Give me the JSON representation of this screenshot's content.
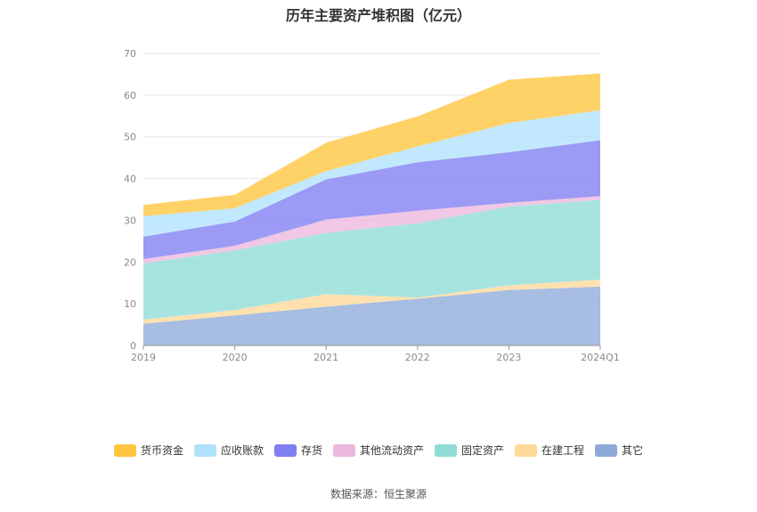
{
  "chart_data": {
    "type": "area",
    "stacked": true,
    "title": "历年主要资产堆积图（亿元）",
    "categories": [
      "2019",
      "2020",
      "2021",
      "2022",
      "2023",
      "2024Q1"
    ],
    "ylim": [
      0,
      70
    ],
    "yticks": [
      0,
      10,
      20,
      30,
      40,
      50,
      60,
      70
    ],
    "grid": true,
    "legend_position": "bottom",
    "series": [
      {
        "name": "其它",
        "color": "#8eaad8",
        "values": [
          5.2,
          7.2,
          9.3,
          11.2,
          13.3,
          14.1
        ]
      },
      {
        "name": "在建工程",
        "color": "#ffd99a",
        "values": [
          1.0,
          1.3,
          3.0,
          0.3,
          1.1,
          1.7
        ]
      },
      {
        "name": "固定资产",
        "color": "#8fdcd6",
        "values": [
          13.5,
          14.3,
          14.7,
          17.8,
          18.9,
          19.1
        ]
      },
      {
        "name": "其他流动资产",
        "color": "#ecb7dd",
        "values": [
          1.0,
          1.1,
          3.2,
          3.0,
          0.9,
          0.9
        ]
      },
      {
        "name": "存货",
        "color": "#7f7ef2",
        "values": [
          5.4,
          5.8,
          9.6,
          11.6,
          12.1,
          13.4
        ]
      },
      {
        "name": "应收账款",
        "color": "#b0e1fb",
        "values": [
          4.9,
          3.2,
          2.0,
          3.8,
          7.0,
          7.2
        ]
      },
      {
        "name": "货币资金",
        "color": "#ffc53d",
        "values": [
          2.7,
          3.2,
          6.8,
          7.2,
          10.4,
          8.8
        ]
      }
    ],
    "legend_order": [
      "货币资金",
      "应收账款",
      "存货",
      "其他流动资产",
      "固定资产",
      "在建工程",
      "其它"
    ]
  },
  "source_text": "数据来源：恒生聚源"
}
